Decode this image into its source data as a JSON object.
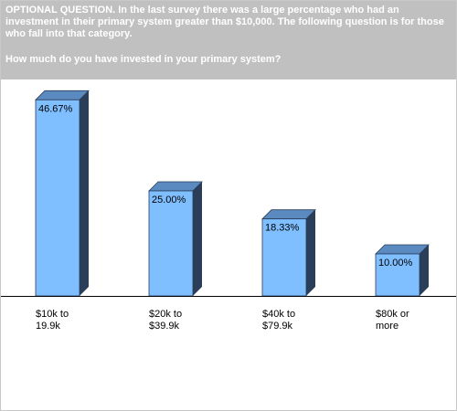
{
  "header": {
    "intro": "OPTIONAL QUESTION. In the last survey there was a large percentage who had an investment in their primary system greater than $10,000. The following question is for those who fall into that category.",
    "question": "How much do you have invested in your primary system?"
  },
  "colors": {
    "header_bg": "#c0c0c0",
    "bar_front": "#7fbfff",
    "bar_top": "#5a8ac0",
    "bar_side": "#2a3e5a",
    "bar_outline": "#2a3e5a",
    "axis": "#000000"
  },
  "chart_data": {
    "type": "bar",
    "categories": [
      "$10k to\n19.9k",
      "$20k to\n$39.9k",
      "$40k to\n$79.9k",
      "$80k or\nmore"
    ],
    "values": [
      46.67,
      25.0,
      18.33,
      10.0
    ],
    "data_labels": [
      "46.67%",
      "25.00%",
      "18.33%",
      "10.00%"
    ],
    "ylim": [
      0,
      50
    ],
    "grid": false,
    "legend": "none"
  }
}
